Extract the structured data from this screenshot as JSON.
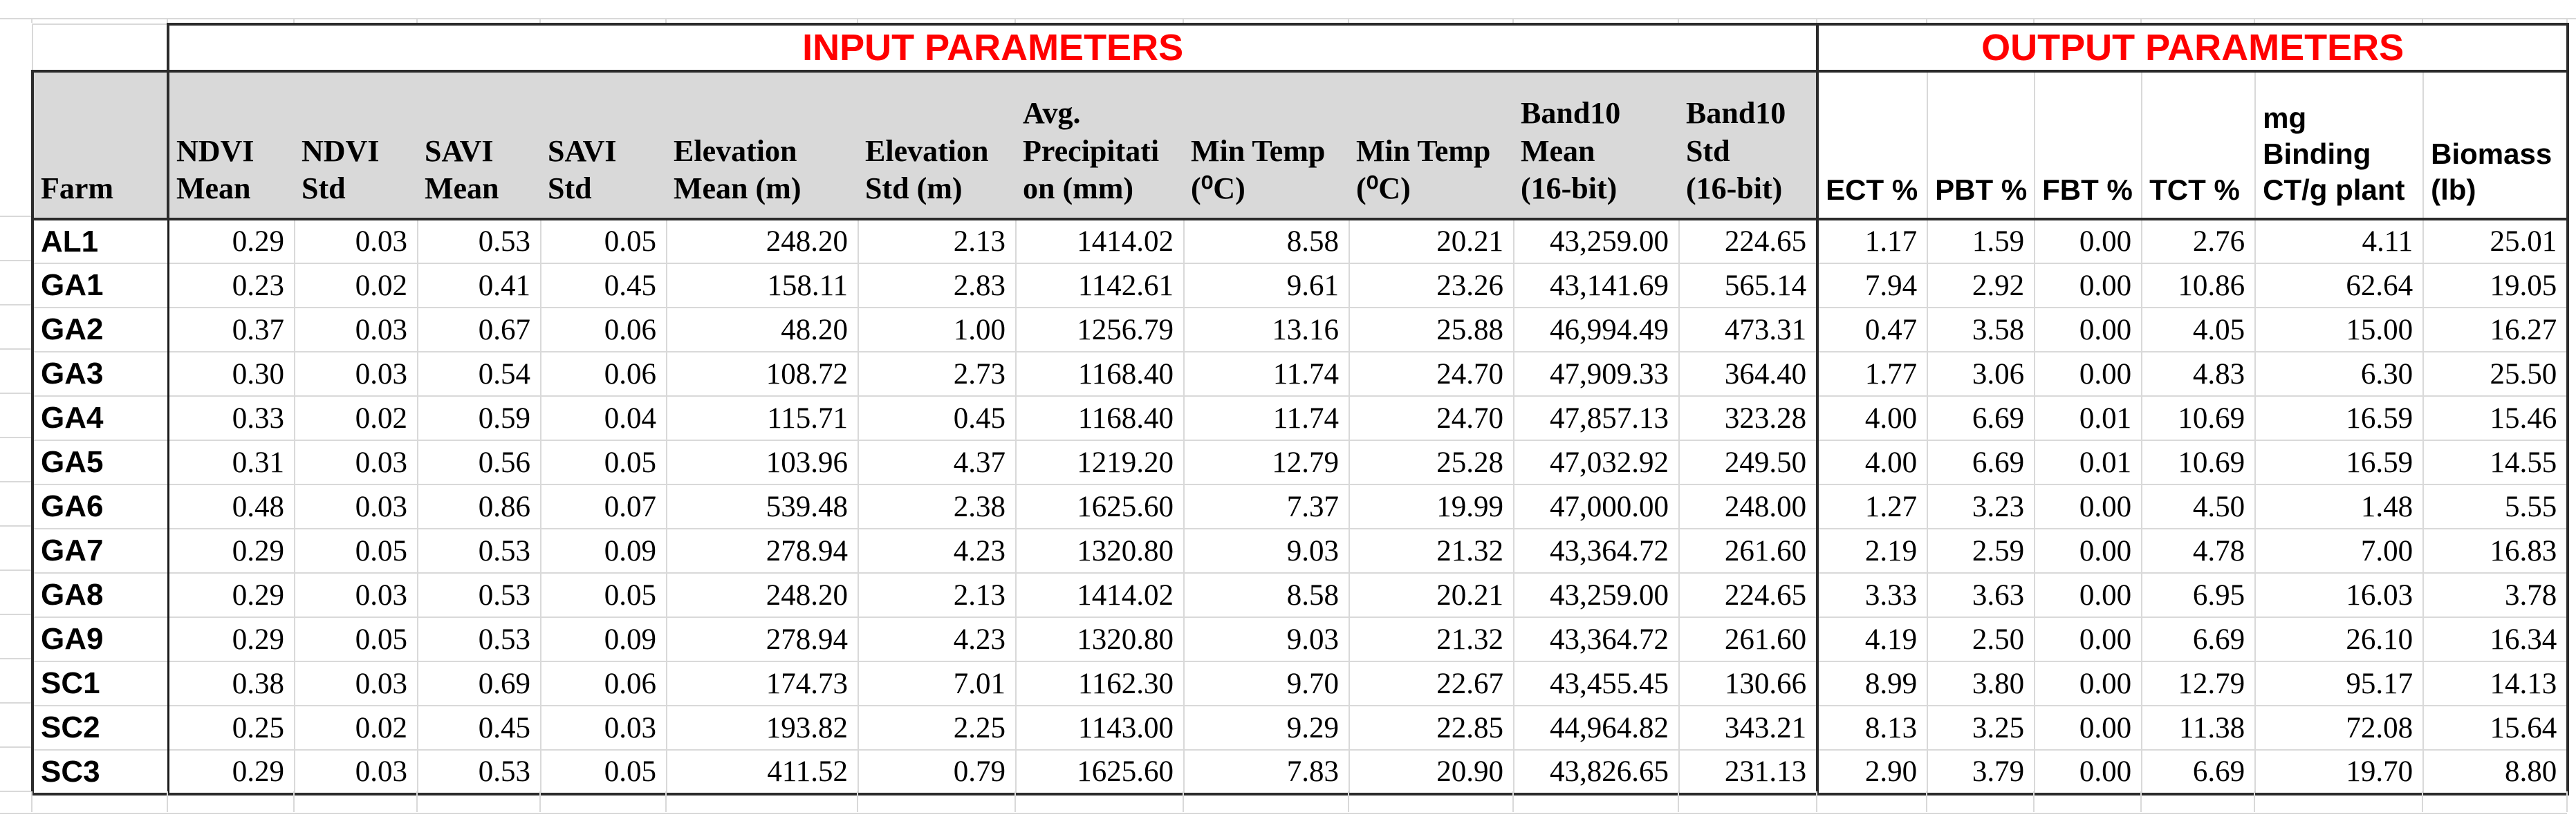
{
  "sheet": {
    "input_title": "INPUT PARAMETERS",
    "output_title": "OUTPUT PARAMETERS",
    "colors": {
      "title_red": "#FF0000",
      "header_fill": "#D9D9D9"
    },
    "columns": [
      {
        "key": "farm",
        "label": "Farm",
        "group": "farm"
      },
      {
        "key": "ndvi-mean",
        "label": "NDVI\nMean",
        "group": "input"
      },
      {
        "key": "ndvi-std",
        "label": "NDVI\nStd",
        "group": "input"
      },
      {
        "key": "savi-mean",
        "label": "SAVI\nMean",
        "group": "input"
      },
      {
        "key": "savi-std",
        "label": "SAVI\nStd",
        "group": "input"
      },
      {
        "key": "elevation-mean",
        "label": "Elevation\nMean (m)",
        "group": "input"
      },
      {
        "key": "elevation-std",
        "label": "Elevation\nStd (m)",
        "group": "input"
      },
      {
        "key": "avg-precipitation",
        "label": "Avg.\nPrecipitati\non (mm)",
        "group": "input"
      },
      {
        "key": "min-temp-1",
        "label": "Min Temp\n(⁰C)",
        "group": "input"
      },
      {
        "key": "min-temp-2",
        "label": "Min Temp\n(⁰C)",
        "group": "input"
      },
      {
        "key": "band10-mean",
        "label": "Band10\nMean\n(16-bit)",
        "group": "input"
      },
      {
        "key": "band10-std",
        "label": "Band10\nStd\n(16-bit)",
        "group": "input"
      },
      {
        "key": "ect-pct",
        "label": "ECT %",
        "group": "output"
      },
      {
        "key": "pbt-pct",
        "label": "PBT %",
        "group": "output"
      },
      {
        "key": "fbt-pct",
        "label": "FBT %",
        "group": "output"
      },
      {
        "key": "tct-pct",
        "label": "TCT %",
        "group": "output"
      },
      {
        "key": "mg-binding-ct",
        "label": "mg\nBinding\nCT/g plant",
        "group": "output"
      },
      {
        "key": "biomass",
        "label": "Biomass\n(lb)",
        "group": "output"
      }
    ],
    "rows": [
      {
        "farm": "AL1",
        "values": [
          "0.29",
          "0.03",
          "0.53",
          "0.05",
          "248.20",
          "2.13",
          "1414.02",
          "8.58",
          "20.21",
          "43,259.00",
          "224.65",
          "1.17",
          "1.59",
          "0.00",
          "2.76",
          "4.11",
          "25.01"
        ]
      },
      {
        "farm": "GA1",
        "values": [
          "0.23",
          "0.02",
          "0.41",
          "0.45",
          "158.11",
          "2.83",
          "1142.61",
          "9.61",
          "23.26",
          "43,141.69",
          "565.14",
          "7.94",
          "2.92",
          "0.00",
          "10.86",
          "62.64",
          "19.05"
        ]
      },
      {
        "farm": "GA2",
        "values": [
          "0.37",
          "0.03",
          "0.67",
          "0.06",
          "48.20",
          "1.00",
          "1256.79",
          "13.16",
          "25.88",
          "46,994.49",
          "473.31",
          "0.47",
          "3.58",
          "0.00",
          "4.05",
          "15.00",
          "16.27"
        ]
      },
      {
        "farm": "GA3",
        "values": [
          "0.30",
          "0.03",
          "0.54",
          "0.06",
          "108.72",
          "2.73",
          "1168.40",
          "11.74",
          "24.70",
          "47,909.33",
          "364.40",
          "1.77",
          "3.06",
          "0.00",
          "4.83",
          "6.30",
          "25.50"
        ]
      },
      {
        "farm": "GA4",
        "values": [
          "0.33",
          "0.02",
          "0.59",
          "0.04",
          "115.71",
          "0.45",
          "1168.40",
          "11.74",
          "24.70",
          "47,857.13",
          "323.28",
          "4.00",
          "6.69",
          "0.01",
          "10.69",
          "16.59",
          "15.46"
        ]
      },
      {
        "farm": "GA5",
        "values": [
          "0.31",
          "0.03",
          "0.56",
          "0.05",
          "103.96",
          "4.37",
          "1219.20",
          "12.79",
          "25.28",
          "47,032.92",
          "249.50",
          "4.00",
          "6.69",
          "0.01",
          "10.69",
          "16.59",
          "14.55"
        ]
      },
      {
        "farm": "GA6",
        "values": [
          "0.48",
          "0.03",
          "0.86",
          "0.07",
          "539.48",
          "2.38",
          "1625.60",
          "7.37",
          "19.99",
          "47,000.00",
          "248.00",
          "1.27",
          "3.23",
          "0.00",
          "4.50",
          "1.48",
          "5.55"
        ]
      },
      {
        "farm": "GA7",
        "values": [
          "0.29",
          "0.05",
          "0.53",
          "0.09",
          "278.94",
          "4.23",
          "1320.80",
          "9.03",
          "21.32",
          "43,364.72",
          "261.60",
          "2.19",
          "2.59",
          "0.00",
          "4.78",
          "7.00",
          "16.83"
        ]
      },
      {
        "farm": "GA8",
        "values": [
          "0.29",
          "0.03",
          "0.53",
          "0.05",
          "248.20",
          "2.13",
          "1414.02",
          "8.58",
          "20.21",
          "43,259.00",
          "224.65",
          "3.33",
          "3.63",
          "0.00",
          "6.95",
          "16.03",
          "3.78"
        ]
      },
      {
        "farm": "GA9",
        "values": [
          "0.29",
          "0.05",
          "0.53",
          "0.09",
          "278.94",
          "4.23",
          "1320.80",
          "9.03",
          "21.32",
          "43,364.72",
          "261.60",
          "4.19",
          "2.50",
          "0.00",
          "6.69",
          "26.10",
          "16.34"
        ]
      },
      {
        "farm": "SC1",
        "values": [
          "0.38",
          "0.03",
          "0.69",
          "0.06",
          "174.73",
          "7.01",
          "1162.30",
          "9.70",
          "22.67",
          "43,455.45",
          "130.66",
          "8.99",
          "3.80",
          "0.00",
          "12.79",
          "95.17",
          "14.13"
        ]
      },
      {
        "farm": "SC2",
        "values": [
          "0.25",
          "0.02",
          "0.45",
          "0.03",
          "193.82",
          "2.25",
          "1143.00",
          "9.29",
          "22.85",
          "44,964.82",
          "343.21",
          "8.13",
          "3.25",
          "0.00",
          "11.38",
          "72.08",
          "15.64"
        ]
      },
      {
        "farm": "SC3",
        "values": [
          "0.29",
          "0.03",
          "0.53",
          "0.05",
          "411.52",
          "0.79",
          "1625.60",
          "7.83",
          "20.90",
          "43,826.65",
          "231.13",
          "2.90",
          "3.79",
          "0.00",
          "6.69",
          "19.70",
          "8.80"
        ]
      }
    ]
  }
}
